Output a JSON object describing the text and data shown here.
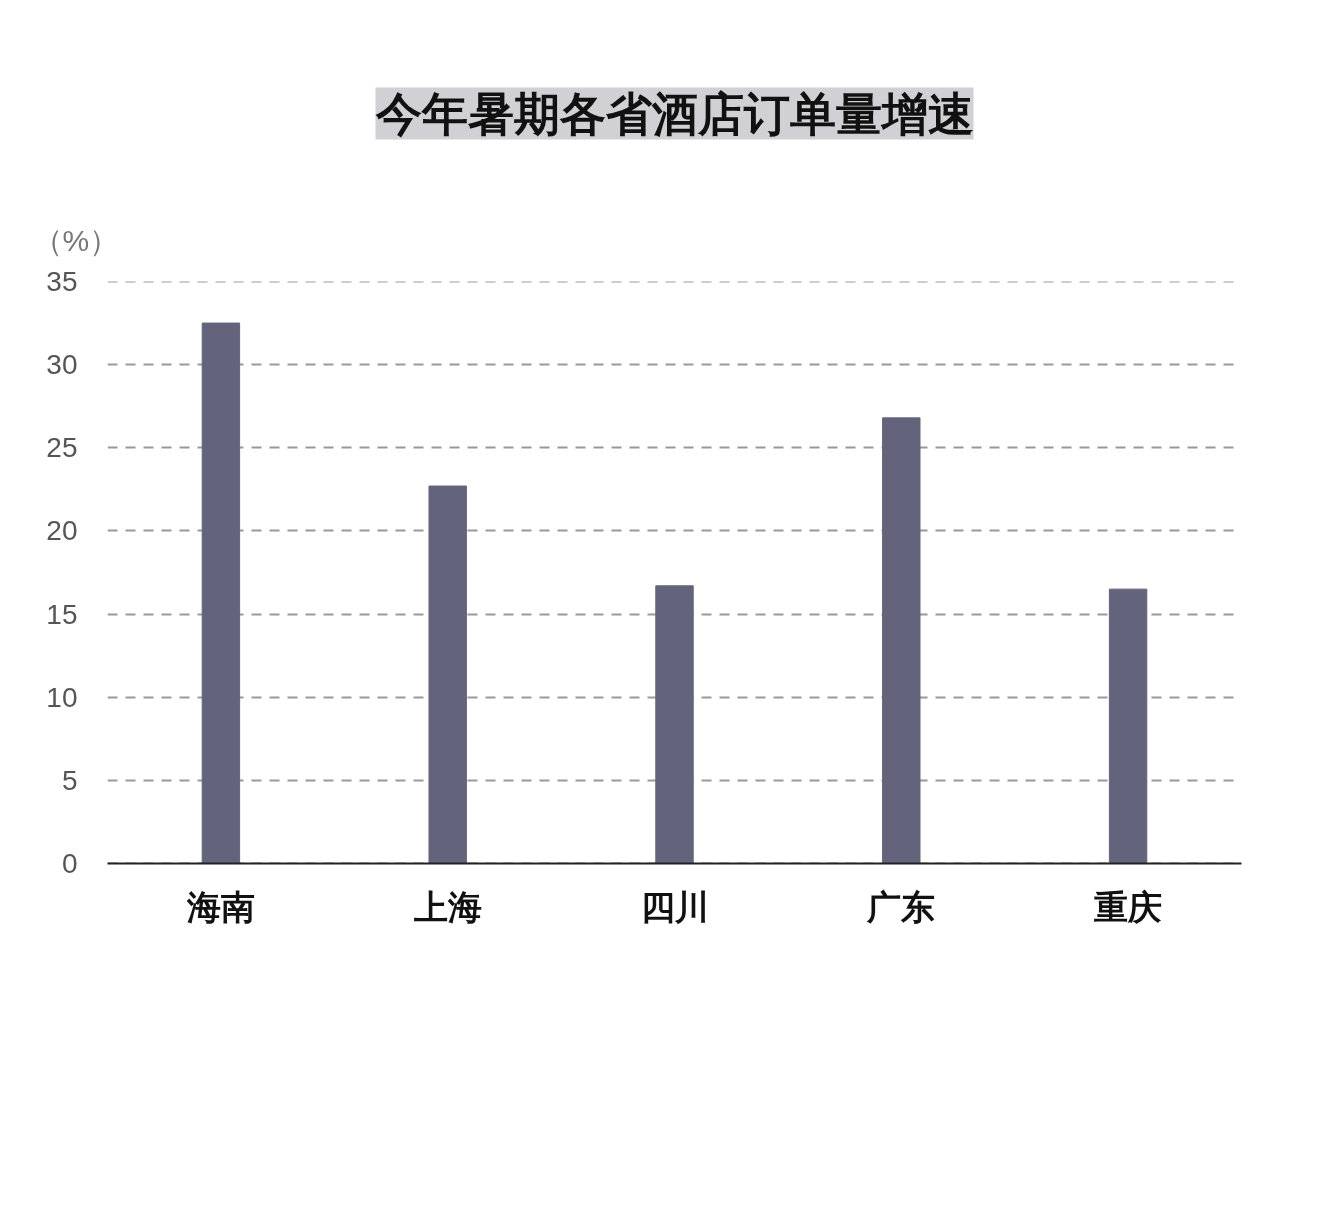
{
  "chart_data": {
    "type": "bar",
    "title": "今年暑期各省酒店订单量增速",
    "ylabel": "（%）",
    "categories": [
      "海南",
      "上海",
      "四川",
      "广东",
      "重庆"
    ],
    "values": [
      32.5,
      22.7,
      16.7,
      26.8,
      16.5
    ],
    "color": "#63647c",
    "ylim": [
      0,
      35
    ],
    "yticks": [
      0,
      5,
      10,
      15,
      20,
      25,
      30,
      35
    ],
    "grid": "y"
  }
}
